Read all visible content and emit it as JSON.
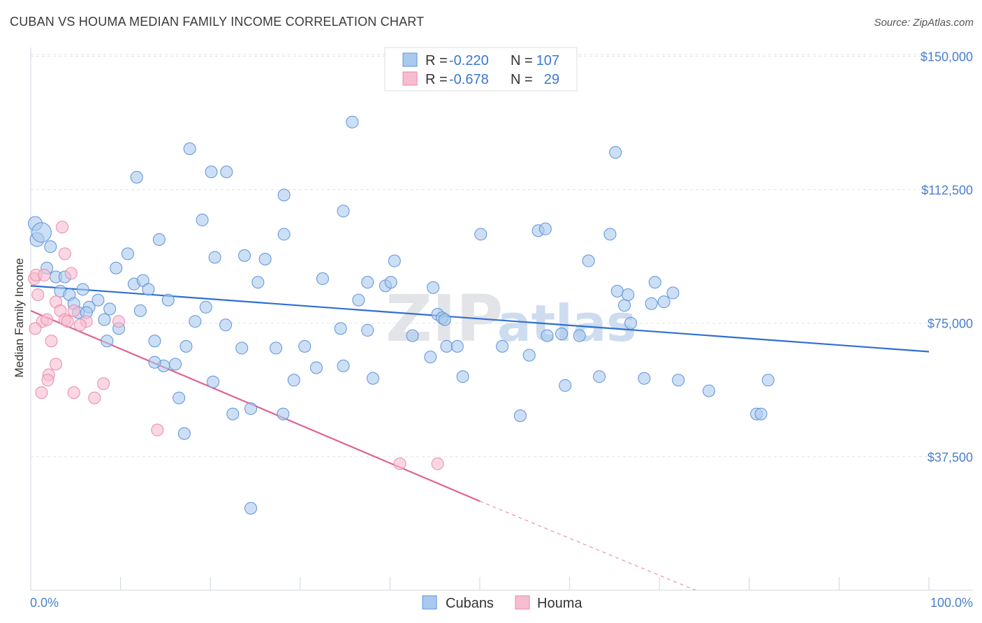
{
  "header": {
    "title": "CUBAN VS HOUMA MEDIAN FAMILY INCOME CORRELATION CHART",
    "source": "Source: ZipAtlas.com"
  },
  "watermark": {
    "zip": "ZIP",
    "atlas": "atlas"
  },
  "legend_top": [
    {
      "r_label": "R =",
      "r_value": "-0.220",
      "n_label": "N =",
      "n_value": "107",
      "color": "#4a8ad8"
    },
    {
      "r_label": "R =",
      "r_value": "-0.678",
      "n_label": "N =",
      "n_value": "29",
      "color": "#e36b98"
    }
  ],
  "legend_bottom": [
    "Cubans",
    "Houma"
  ],
  "colors": {
    "cubans_fill": "#aac9ef",
    "cubans_stroke": "#5d93d8",
    "cubans_line": "#2f6fcf",
    "houma_fill": "#f7bcd0",
    "houma_stroke": "#e98aa9",
    "houma_line": "#e0628f",
    "tick_text": "#4a7fd0",
    "grid": "#dde3ea"
  },
  "chart_data": {
    "type": "scatter",
    "title": "CUBAN VS HOUMA MEDIAN FAMILY INCOME CORRELATION CHART",
    "xlabel": "",
    "ylabel": "Median Family Income",
    "x_tick_labels": [
      "0.0%",
      "100.0%"
    ],
    "y_tick_labels": [
      "$37,500",
      "$75,000",
      "$112,500",
      "$150,000"
    ],
    "y_ticks": [
      37500,
      75000,
      112500,
      150000
    ],
    "xlim": [
      0,
      100
    ],
    "ylim": [
      0,
      155000
    ],
    "grid": true,
    "legend_position": "top-center",
    "series": [
      {
        "name": "Cubans",
        "r": -0.22,
        "n": 107,
        "trend": {
          "x": [
            0,
            100
          ],
          "y": [
            85500,
            67000
          ]
        },
        "points": [
          [
            0.5,
            103000
          ],
          [
            0.7,
            98500
          ],
          [
            1.2,
            100500
          ],
          [
            2.2,
            96500
          ],
          [
            1.8,
            90500
          ],
          [
            2.8,
            88000
          ],
          [
            3.8,
            88000
          ],
          [
            3.3,
            84000
          ],
          [
            5.8,
            84500
          ],
          [
            4.3,
            83000
          ],
          [
            4.8,
            80500
          ],
          [
            7.5,
            81500
          ],
          [
            5.3,
            78000
          ],
          [
            6.5,
            79500
          ],
          [
            6.2,
            78000
          ],
          [
            8.8,
            79000
          ],
          [
            8.2,
            76000
          ],
          [
            9.8,
            73500
          ],
          [
            8.5,
            70000
          ],
          [
            9.5,
            90500
          ],
          [
            10.8,
            94500
          ],
          [
            11.5,
            86000
          ],
          [
            12.5,
            87000
          ],
          [
            12.2,
            78500
          ],
          [
            13.1,
            84500
          ],
          [
            14.3,
            98500
          ],
          [
            13.8,
            70000
          ],
          [
            15.3,
            81500
          ],
          [
            14.8,
            63000
          ],
          [
            16.1,
            63500
          ],
          [
            17.3,
            68500
          ],
          [
            18.3,
            75500
          ],
          [
            19.5,
            79500
          ],
          [
            20.5,
            93500
          ],
          [
            21.7,
            74500
          ],
          [
            20.3,
            58500
          ],
          [
            22.5,
            49500
          ],
          [
            23.5,
            68000
          ],
          [
            24.5,
            51000
          ],
          [
            23.8,
            94000
          ],
          [
            25.3,
            86500
          ],
          [
            26.1,
            93000
          ],
          [
            27.3,
            68000
          ],
          [
            28.1,
            49500
          ],
          [
            29.3,
            59000
          ],
          [
            30.5,
            68500
          ],
          [
            31.8,
            62500
          ],
          [
            32.5,
            87500
          ],
          [
            34.5,
            73500
          ],
          [
            34.8,
            63000
          ],
          [
            36.5,
            81500
          ],
          [
            37.5,
            73000
          ],
          [
            38.1,
            59500
          ],
          [
            39.5,
            85500
          ],
          [
            40.5,
            92500
          ],
          [
            42.5,
            71500
          ],
          [
            20.1,
            117500
          ],
          [
            21.8,
            117500
          ],
          [
            17.7,
            124000
          ],
          [
            11.8,
            116000
          ],
          [
            19.1,
            104000
          ],
          [
            28.2,
            100000
          ],
          [
            28.2,
            111000
          ],
          [
            34.8,
            106500
          ],
          [
            37.5,
            86500
          ],
          [
            35.8,
            131500
          ],
          [
            40.1,
            86500
          ],
          [
            44.5,
            65500
          ],
          [
            44.8,
            85000
          ],
          [
            45.3,
            77500
          ],
          [
            45.8,
            76500
          ],
          [
            46.1,
            76000
          ],
          [
            46.3,
            68500
          ],
          [
            47.5,
            68500
          ],
          [
            48.1,
            60000
          ],
          [
            50.1,
            100000
          ],
          [
            52.5,
            68500
          ],
          [
            54.5,
            49000
          ],
          [
            55.5,
            66000
          ],
          [
            56.5,
            101000
          ],
          [
            57.3,
            101500
          ],
          [
            57.5,
            71500
          ],
          [
            59.1,
            72000
          ],
          [
            59.5,
            57500
          ],
          [
            61.1,
            71500
          ],
          [
            62.1,
            92500
          ],
          [
            63.3,
            60000
          ],
          [
            64.5,
            100000
          ],
          [
            65.3,
            84000
          ],
          [
            66.1,
            80000
          ],
          [
            66.5,
            83000
          ],
          [
            66.8,
            75000
          ],
          [
            68.3,
            59500
          ],
          [
            69.1,
            80500
          ],
          [
            69.5,
            86500
          ],
          [
            70.5,
            81000
          ],
          [
            71.5,
            83500
          ],
          [
            72.1,
            59000
          ],
          [
            75.5,
            56000
          ],
          [
            80.8,
            49500
          ],
          [
            81.3,
            49500
          ],
          [
            82.1,
            59000
          ],
          [
            65.1,
            123000
          ],
          [
            13.8,
            64000
          ],
          [
            16.5,
            54000
          ],
          [
            17.1,
            44000
          ],
          [
            24.5,
            23000
          ]
        ]
      },
      {
        "name": "Houma",
        "r": -0.678,
        "n": 29,
        "trend": {
          "x": [
            0,
            50
          ],
          "y": [
            78500,
            25000
          ]
        },
        "dashed_extension": {
          "x": [
            50,
            74
          ],
          "y": [
            25000,
            0
          ]
        },
        "points": [
          [
            0.4,
            87500
          ],
          [
            0.6,
            88500
          ],
          [
            1.5,
            88500
          ],
          [
            0.8,
            83000
          ],
          [
            3.5,
            102000
          ],
          [
            3.8,
            94500
          ],
          [
            4.5,
            89000
          ],
          [
            2.8,
            81000
          ],
          [
            3.3,
            78500
          ],
          [
            4.8,
            78500
          ],
          [
            1.3,
            75500
          ],
          [
            1.8,
            76000
          ],
          [
            3.8,
            76000
          ],
          [
            6.2,
            75500
          ],
          [
            5.5,
            74500
          ],
          [
            9.8,
            75500
          ],
          [
            0.5,
            73500
          ],
          [
            2.3,
            70000
          ],
          [
            2.8,
            63500
          ],
          [
            2.0,
            60500
          ],
          [
            1.9,
            59000
          ],
          [
            8.1,
            58000
          ],
          [
            1.2,
            55500
          ],
          [
            4.8,
            55500
          ],
          [
            7.1,
            54000
          ],
          [
            14.1,
            45000
          ],
          [
            41.1,
            35500
          ],
          [
            45.3,
            35500
          ],
          [
            4.1,
            75500
          ]
        ]
      }
    ]
  }
}
